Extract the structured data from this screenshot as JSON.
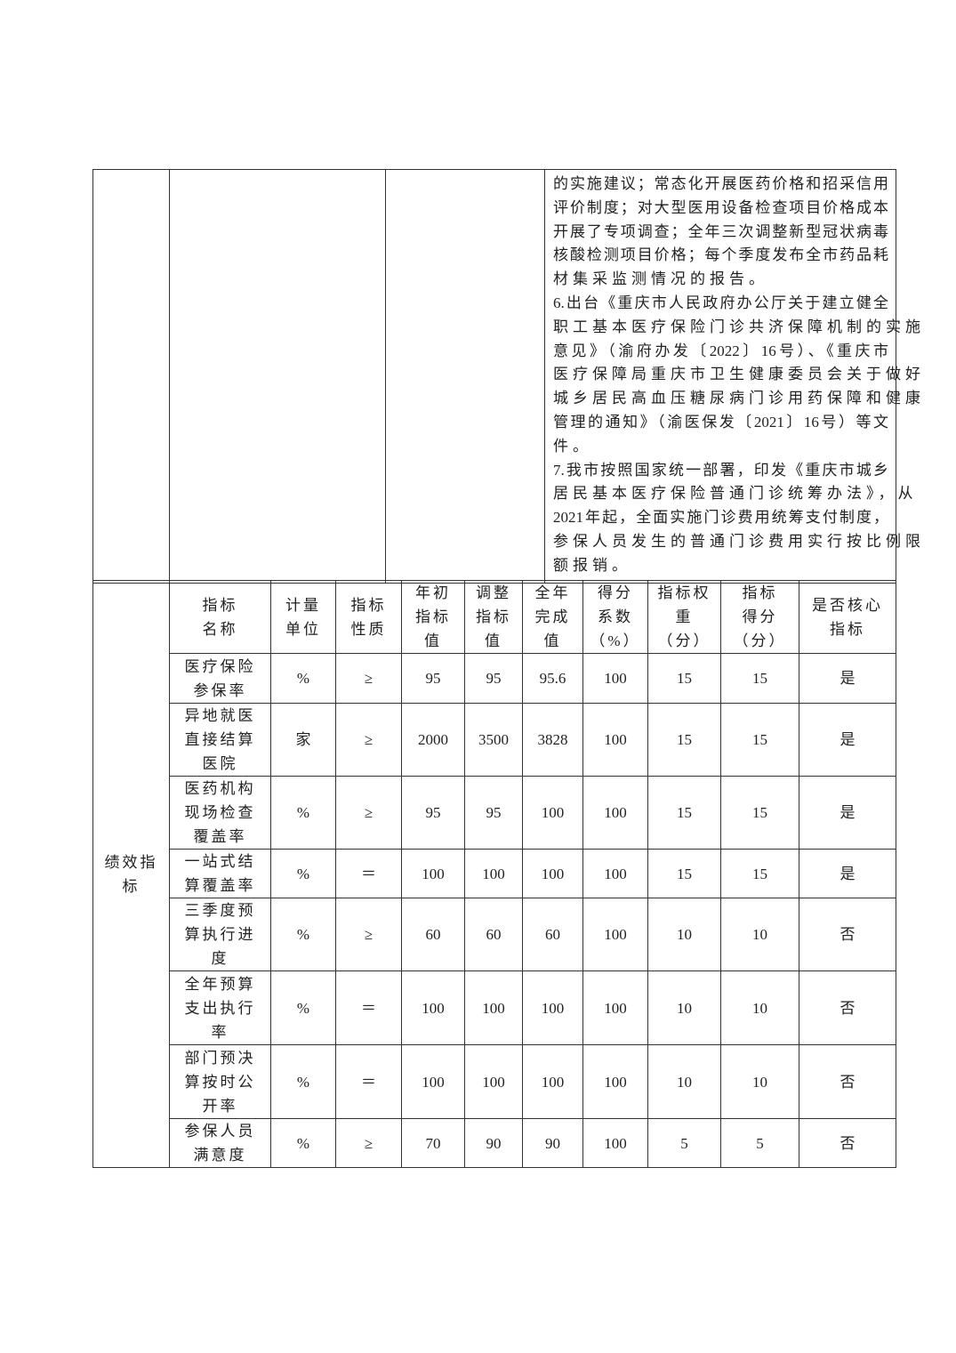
{
  "top_section": {
    "lines": [
      {
        "text": "的实施建议；常态化开展医药价格和招采信用",
        "full": true
      },
      {
        "text": "评价制度；对大型医用设备检查项目价格成本",
        "full": true
      },
      {
        "text": "开展了专项调查；全年三次调整新型冠状病毒",
        "full": true
      },
      {
        "text": "核酸检测项目价格；每个季度发布全市药品耗",
        "full": true
      },
      {
        "text": "材集采监测情况的报告。",
        "full": false
      },
      {
        "text": "6.出台《重庆市人民政府办公厅关于建立健全",
        "full": true
      },
      {
        "text": "职工基本医疗保险门诊共济保障机制的实施",
        "full": false
      },
      {
        "text": "意见》（渝府办发〔2022〕16号）、《重庆市",
        "full": true
      },
      {
        "text": "医疗保障局重庆市卫生健康委员会关于做好",
        "full": false
      },
      {
        "text": "城乡居民高血压糖尿病门诊用药保障和健康",
        "full": false
      },
      {
        "text": "管理的通知》（渝医保发〔2021〕16号）等文",
        "full": true
      },
      {
        "text": "件。",
        "full": false
      },
      {
        "text": "7.我市按照国家统一部署，印发《重庆市城乡",
        "full": true
      },
      {
        "text": "居民基本医疗保险普通门诊统筹办法》，从",
        "full": false
      },
      {
        "text": "2021年起，全面实施门诊费用统筹支付制度，",
        "full": true
      },
      {
        "text": "参保人员发生的普通门诊费用实行按比例限",
        "full": false
      },
      {
        "text": "额报销。",
        "full": false
      }
    ]
  },
  "indicators": {
    "section_label": [
      "绩效指",
      "标"
    ],
    "headers": [
      [
        "指标",
        "名称"
      ],
      [
        "计量",
        "单位"
      ],
      [
        "指标",
        "性质"
      ],
      [
        "年初",
        "指标",
        "值"
      ],
      [
        "调整",
        "指标",
        "值"
      ],
      [
        "全年",
        "完成",
        "值"
      ],
      [
        "得分",
        "系数",
        "（%）"
      ],
      [
        "指标权",
        "重",
        "（分）"
      ],
      [
        "指标",
        "得分",
        "（分）"
      ],
      [
        "是否核心",
        "指标"
      ]
    ],
    "rows": [
      {
        "name": [
          "医疗保险",
          "参保率"
        ],
        "unit": "%",
        "nature": "≥",
        "initial": "95",
        "adjusted": "95",
        "actual": "95.6",
        "coef": "100",
        "weight": "15",
        "score": "15",
        "core": "是"
      },
      {
        "name": [
          "异地就医",
          "直接结算",
          "医院"
        ],
        "unit": "家",
        "nature": "≥",
        "initial": "2000",
        "adjusted": "3500",
        "actual": "3828",
        "coef": "100",
        "weight": "15",
        "score": "15",
        "core": "是"
      },
      {
        "name": [
          "医药机构",
          "现场检查",
          "覆盖率"
        ],
        "unit": "%",
        "nature": "≥",
        "initial": "95",
        "adjusted": "95",
        "actual": "100",
        "coef": "100",
        "weight": "15",
        "score": "15",
        "core": "是"
      },
      {
        "name": [
          "一站式结",
          "算覆盖率"
        ],
        "unit": "%",
        "nature": "＝",
        "initial": "100",
        "adjusted": "100",
        "actual": "100",
        "coef": "100",
        "weight": "15",
        "score": "15",
        "core": "是"
      },
      {
        "name": [
          "三季度预",
          "算执行进",
          "度"
        ],
        "unit": "%",
        "nature": "≥",
        "initial": "60",
        "adjusted": "60",
        "actual": "60",
        "coef": "100",
        "weight": "10",
        "score": "10",
        "core": "否"
      },
      {
        "name": [
          "全年预算",
          "支出执行",
          "率"
        ],
        "unit": "%",
        "nature": "＝",
        "initial": "100",
        "adjusted": "100",
        "actual": "100",
        "coef": "100",
        "weight": "10",
        "score": "10",
        "core": "否"
      },
      {
        "name": [
          "部门预决",
          "算按时公",
          "开率"
        ],
        "unit": "%",
        "nature": "＝",
        "initial": "100",
        "adjusted": "100",
        "actual": "100",
        "coef": "100",
        "weight": "10",
        "score": "10",
        "core": "否"
      },
      {
        "name": [
          "参保人员",
          "满意度"
        ],
        "unit": "%",
        "nature": "≥",
        "initial": "70",
        "adjusted": "90",
        "actual": "90",
        "coef": "100",
        "weight": "5",
        "score": "5",
        "core": "否"
      }
    ]
  }
}
